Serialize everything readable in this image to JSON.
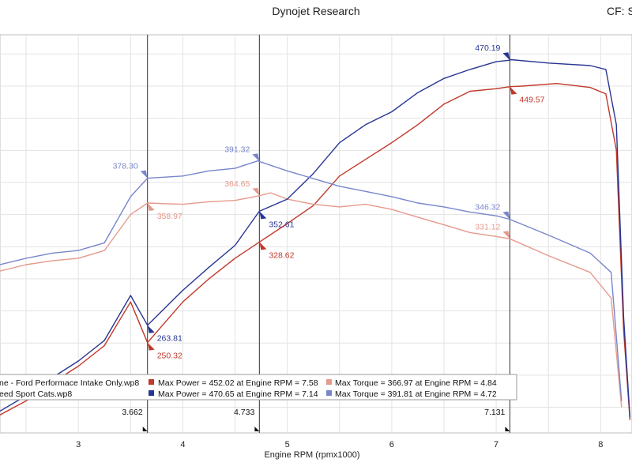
{
  "header": {
    "title": "Dynojet Research",
    "cf": "CF: S"
  },
  "chart_data": {
    "type": "line",
    "title": "Dynojet Research",
    "xlabel": "Engine RPM (rpmx1000)",
    "xlim": [
      2.25,
      8.3
    ],
    "ylim": [
      180,
      490
    ],
    "x_ticks": [
      3,
      4,
      5,
      6,
      7,
      8
    ],
    "markers": [
      "3.662",
      "4.733",
      "7.131"
    ],
    "marker_positions": [
      3.662,
      4.733,
      7.131
    ],
    "colors": {
      "run1_power": "#c0392b",
      "run1_torque": "#e59a8c",
      "run2_power": "#283593",
      "run2_torque": "#7986cb",
      "grid": "#e3e3e3"
    },
    "series": [
      {
        "key": "run1_power",
        "values": [
          [
            2.25,
            194
          ],
          [
            2.5,
            205
          ],
          [
            2.75,
            219
          ],
          [
            3.0,
            232
          ],
          [
            3.25,
            248
          ],
          [
            3.5,
            282
          ],
          [
            3.662,
            250.32
          ],
          [
            4.0,
            282
          ],
          [
            4.25,
            300
          ],
          [
            4.5,
            316
          ],
          [
            4.733,
            328.62
          ],
          [
            5.0,
            343
          ],
          [
            5.25,
            357
          ],
          [
            5.5,
            380
          ],
          [
            5.75,
            393
          ],
          [
            6.0,
            406
          ],
          [
            6.25,
            420
          ],
          [
            6.5,
            436
          ],
          [
            6.75,
            446
          ],
          [
            7.0,
            448
          ],
          [
            7.131,
            449.57
          ],
          [
            7.25,
            450
          ],
          [
            7.58,
            452.02
          ],
          [
            7.9,
            449
          ],
          [
            8.05,
            444
          ],
          [
            8.15,
            400
          ],
          [
            8.22,
            260
          ],
          [
            8.28,
            190
          ]
        ]
      },
      {
        "key": "run1_torque",
        "values": [
          [
            2.25,
            306
          ],
          [
            2.5,
            311
          ],
          [
            2.75,
            314
          ],
          [
            3.0,
            316
          ],
          [
            3.25,
            322
          ],
          [
            3.5,
            350
          ],
          [
            3.662,
            358.97
          ],
          [
            4.0,
            358
          ],
          [
            4.25,
            360
          ],
          [
            4.5,
            361
          ],
          [
            4.733,
            364.65
          ],
          [
            4.84,
            366.97
          ],
          [
            5.0,
            362
          ],
          [
            5.25,
            358
          ],
          [
            5.5,
            356
          ],
          [
            5.75,
            358
          ],
          [
            6.0,
            354
          ],
          [
            6.25,
            348
          ],
          [
            6.5,
            342
          ],
          [
            6.75,
            336
          ],
          [
            7.0,
            333
          ],
          [
            7.131,
            331.12
          ],
          [
            7.5,
            318
          ],
          [
            7.9,
            305
          ],
          [
            8.1,
            285
          ],
          [
            8.2,
            200
          ]
        ]
      },
      {
        "key": "run2_power",
        "values": [
          [
            2.25,
            197
          ],
          [
            2.5,
            209
          ],
          [
            2.75,
            223
          ],
          [
            3.0,
            236
          ],
          [
            3.25,
            252
          ],
          [
            3.5,
            287
          ],
          [
            3.662,
            263.81
          ],
          [
            4.0,
            291
          ],
          [
            4.25,
            309
          ],
          [
            4.5,
            326
          ],
          [
            4.733,
            352.61
          ],
          [
            5.0,
            362
          ],
          [
            5.25,
            382
          ],
          [
            5.5,
            406
          ],
          [
            5.75,
            420
          ],
          [
            6.0,
            430
          ],
          [
            6.25,
            445
          ],
          [
            6.5,
            456
          ],
          [
            6.75,
            463
          ],
          [
            7.0,
            469
          ],
          [
            7.131,
            470.19
          ],
          [
            7.14,
            470.65
          ],
          [
            7.5,
            468
          ],
          [
            7.9,
            466
          ],
          [
            8.05,
            463
          ],
          [
            8.15,
            420
          ],
          [
            8.22,
            270
          ],
          [
            8.28,
            192
          ]
        ]
      },
      {
        "key": "run2_torque",
        "values": [
          [
            2.25,
            311
          ],
          [
            2.5,
            316
          ],
          [
            2.75,
            320
          ],
          [
            3.0,
            322
          ],
          [
            3.25,
            328
          ],
          [
            3.5,
            364
          ],
          [
            3.662,
            378.3
          ],
          [
            4.0,
            380
          ],
          [
            4.25,
            384
          ],
          [
            4.5,
            386
          ],
          [
            4.72,
            391.81
          ],
          [
            4.733,
            391.32
          ],
          [
            5.0,
            384
          ],
          [
            5.25,
            378
          ],
          [
            5.5,
            372
          ],
          [
            5.75,
            368
          ],
          [
            6.0,
            364
          ],
          [
            6.25,
            359
          ],
          [
            6.5,
            356
          ],
          [
            6.75,
            352
          ],
          [
            7.0,
            349
          ],
          [
            7.131,
            346.32
          ],
          [
            7.5,
            334
          ],
          [
            7.9,
            320
          ],
          [
            8.1,
            305
          ],
          [
            8.2,
            205
          ]
        ]
      }
    ],
    "data_labels": [
      {
        "text": "378.30",
        "x": 3.662,
        "y": 378.3,
        "color": "run2_torque",
        "side": "left"
      },
      {
        "text": "358.97",
        "x": 3.662,
        "y": 358.97,
        "color": "run1_torque",
        "side": "right"
      },
      {
        "text": "263.81",
        "x": 3.662,
        "y": 263.81,
        "color": "run2_power",
        "side": "right"
      },
      {
        "text": "250.32",
        "x": 3.662,
        "y": 250.32,
        "color": "run1_power",
        "side": "right"
      },
      {
        "text": "391.32",
        "x": 4.733,
        "y": 391.32,
        "color": "run2_torque",
        "side": "left"
      },
      {
        "text": "364.65",
        "x": 4.733,
        "y": 364.65,
        "color": "run1_torque",
        "side": "left"
      },
      {
        "text": "352.61",
        "x": 4.733,
        "y": 352.61,
        "color": "run2_power",
        "side": "right"
      },
      {
        "text": "328.62",
        "x": 4.733,
        "y": 328.62,
        "color": "run1_power",
        "side": "right"
      },
      {
        "text": "470.19",
        "x": 7.131,
        "y": 470.19,
        "color": "run2_power",
        "side": "left"
      },
      {
        "text": "449.57",
        "x": 7.131,
        "y": 449.57,
        "color": "run1_power",
        "side": "right"
      },
      {
        "text": "346.32",
        "x": 7.131,
        "y": 346.32,
        "color": "run2_torque",
        "side": "left"
      },
      {
        "text": "331.12",
        "x": 7.131,
        "y": 331.12,
        "color": "run1_torque",
        "side": "left"
      }
    ],
    "legend": {
      "placement": "bottom",
      "rows": [
        {
          "file": "ne - Ford Performace Intake Only.wp8",
          "power_color": "run1_power",
          "power_text": "Max Power = 452.02 at Engine RPM = 7.58",
          "torque_color": "run1_torque",
          "torque_text": "Max Torque = 366.97 at Engine RPM = 4.84"
        },
        {
          "file": "eed Sport Cats.wp8",
          "power_color": "run2_power",
          "power_text": "Max Power = 470.65 at Engine RPM = 7.14",
          "torque_color": "run2_torque",
          "torque_text": "Max Torque = 391.81 at Engine RPM = 4.72"
        }
      ]
    }
  }
}
